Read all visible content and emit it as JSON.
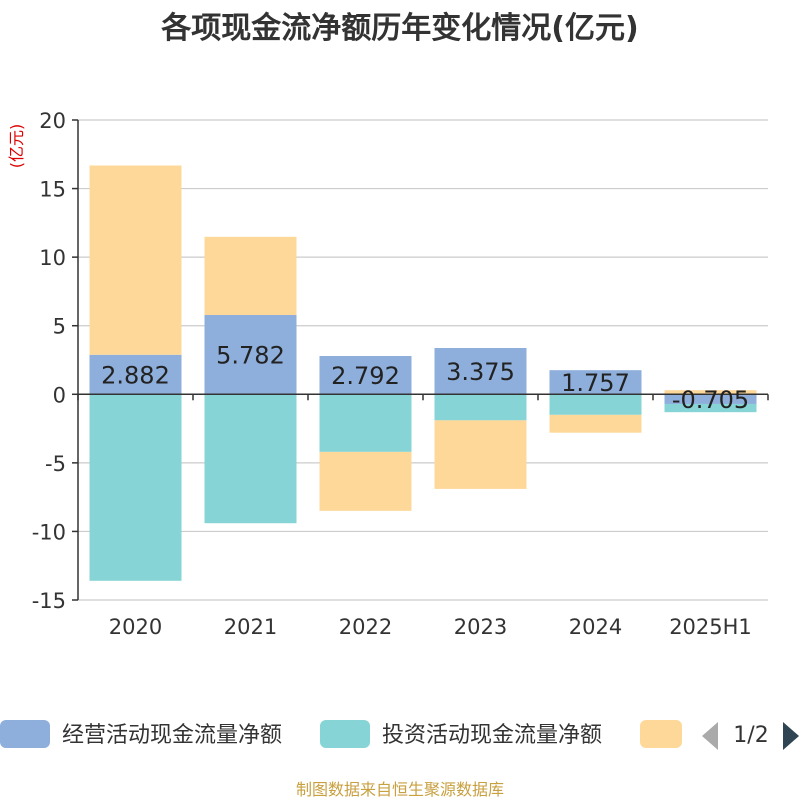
{
  "chart_data": {
    "type": "bar",
    "stacked": true,
    "title": "各项现金流净额历年变化情况(亿元)",
    "ylabel": "(亿元)",
    "ylim": [
      -15,
      20
    ],
    "yticks": [
      -15,
      -10,
      -5,
      0,
      5,
      10,
      15,
      20
    ],
    "grid": true,
    "categories": [
      "2020",
      "2021",
      "2022",
      "2023",
      "2024",
      "2025H1"
    ],
    "series": [
      {
        "name": "经营活动现金流量净额",
        "color": "#8eaedb",
        "values": [
          2.882,
          5.782,
          2.792,
          3.375,
          1.757,
          -0.705
        ],
        "data_labels": [
          "2.882",
          "5.782",
          "2.792",
          "3.375",
          "1.757",
          "-0.705"
        ]
      },
      {
        "name": "投资活动现金流量净额",
        "color": "#86d4d6",
        "values": [
          -13.6,
          -9.4,
          -4.2,
          -1.9,
          -1.5,
          -0.6
        ]
      },
      {
        "name": "",
        "color": "#fed899",
        "values": [
          13.8,
          5.7,
          -4.3,
          -5.0,
          -1.3,
          0.3
        ]
      }
    ],
    "legend": {
      "placement": "bottom",
      "page": "1/2"
    }
  },
  "footer": "制图数据来自恒生聚源数据库",
  "colors": {
    "axis": "#333333",
    "grid": "#cccccc",
    "ylabel": "#dd0000",
    "footer": "#c8a040",
    "legend_arrow_prev": "#aaaaaa",
    "legend_arrow_next": "#2f4554"
  }
}
